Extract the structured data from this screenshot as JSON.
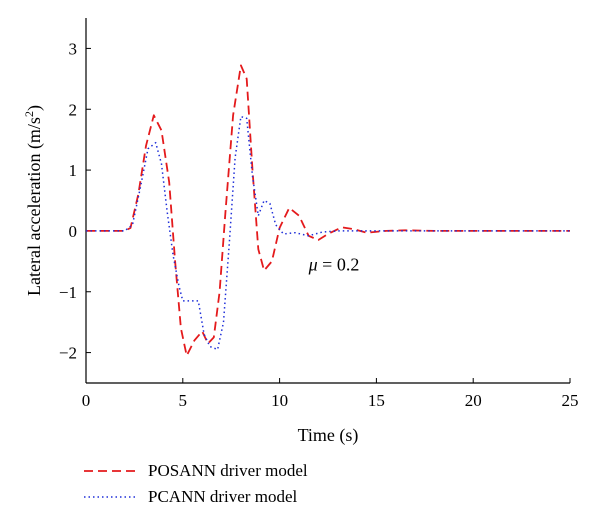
{
  "chart_data": {
    "type": "line",
    "title": "",
    "xlabel": "Time (s)",
    "ylabel_main": "Lateral acceleration (m/s",
    "ylabel_sup": "2",
    "ylabel_close": ")",
    "xlim": [
      0,
      25
    ],
    "ylim": [
      -2.5,
      3.5
    ],
    "xticks": [
      0,
      5,
      10,
      15,
      20,
      25
    ],
    "yticks": [
      -2,
      -1,
      0,
      1,
      2,
      3
    ],
    "grid": false,
    "legend_position": "bottom-left",
    "annotation": {
      "symbol": "μ",
      "text": " = 0.2",
      "x": 11.5,
      "y": -0.65
    },
    "series": [
      {
        "name": "POSANN driver model",
        "color": "#e41a1c",
        "style": "dashed",
        "points": [
          [
            0,
            0
          ],
          [
            2,
            0
          ],
          [
            2.3,
            0.05
          ],
          [
            2.7,
            0.6
          ],
          [
            3.1,
            1.4
          ],
          [
            3.5,
            1.9
          ],
          [
            3.9,
            1.65
          ],
          [
            4.3,
            0.8
          ],
          [
            4.6,
            -0.5
          ],
          [
            4.9,
            -1.6
          ],
          [
            5.2,
            -2.05
          ],
          [
            5.6,
            -1.8
          ],
          [
            6.0,
            -1.65
          ],
          [
            6.3,
            -1.85
          ],
          [
            6.6,
            -1.75
          ],
          [
            6.9,
            -1.0
          ],
          [
            7.2,
            0.3
          ],
          [
            7.6,
            1.9
          ],
          [
            8.0,
            2.72
          ],
          [
            8.3,
            2.5
          ],
          [
            8.6,
            1.0
          ],
          [
            8.9,
            -0.3
          ],
          [
            9.2,
            -0.65
          ],
          [
            9.6,
            -0.5
          ],
          [
            10.0,
            0.05
          ],
          [
            10.5,
            0.38
          ],
          [
            11.0,
            0.25
          ],
          [
            11.5,
            -0.08
          ],
          [
            12.0,
            -0.15
          ],
          [
            12.5,
            -0.05
          ],
          [
            13.2,
            0.06
          ],
          [
            13.8,
            0.03
          ],
          [
            14.5,
            -0.03
          ],
          [
            15.5,
            0.0
          ],
          [
            16.5,
            0.01
          ],
          [
            18,
            0.0
          ],
          [
            25,
            0.0
          ]
        ]
      },
      {
        "name": "PCANN driver model",
        "color": "#1f2fd9",
        "style": "dotted",
        "points": [
          [
            0,
            0
          ],
          [
            2,
            0
          ],
          [
            2.4,
            0.1
          ],
          [
            2.8,
            0.7
          ],
          [
            3.2,
            1.35
          ],
          [
            3.6,
            1.45
          ],
          [
            3.9,
            1.1
          ],
          [
            4.2,
            0.3
          ],
          [
            4.5,
            -0.4
          ],
          [
            4.8,
            -0.9
          ],
          [
            5.0,
            -1.15
          ],
          [
            5.4,
            -1.15
          ],
          [
            5.8,
            -1.15
          ],
          [
            6.1,
            -1.7
          ],
          [
            6.4,
            -1.9
          ],
          [
            6.8,
            -1.95
          ],
          [
            7.1,
            -1.5
          ],
          [
            7.4,
            -0.2
          ],
          [
            7.7,
            1.2
          ],
          [
            8.0,
            1.88
          ],
          [
            8.3,
            1.85
          ],
          [
            8.6,
            0.9
          ],
          [
            8.9,
            0.25
          ],
          [
            9.2,
            0.5
          ],
          [
            9.5,
            0.45
          ],
          [
            9.8,
            0.1
          ],
          [
            10.2,
            -0.05
          ],
          [
            10.8,
            -0.03
          ],
          [
            11.5,
            -0.08
          ],
          [
            12.2,
            -0.02
          ],
          [
            13,
            0.0
          ],
          [
            25,
            0.0
          ]
        ]
      }
    ]
  }
}
